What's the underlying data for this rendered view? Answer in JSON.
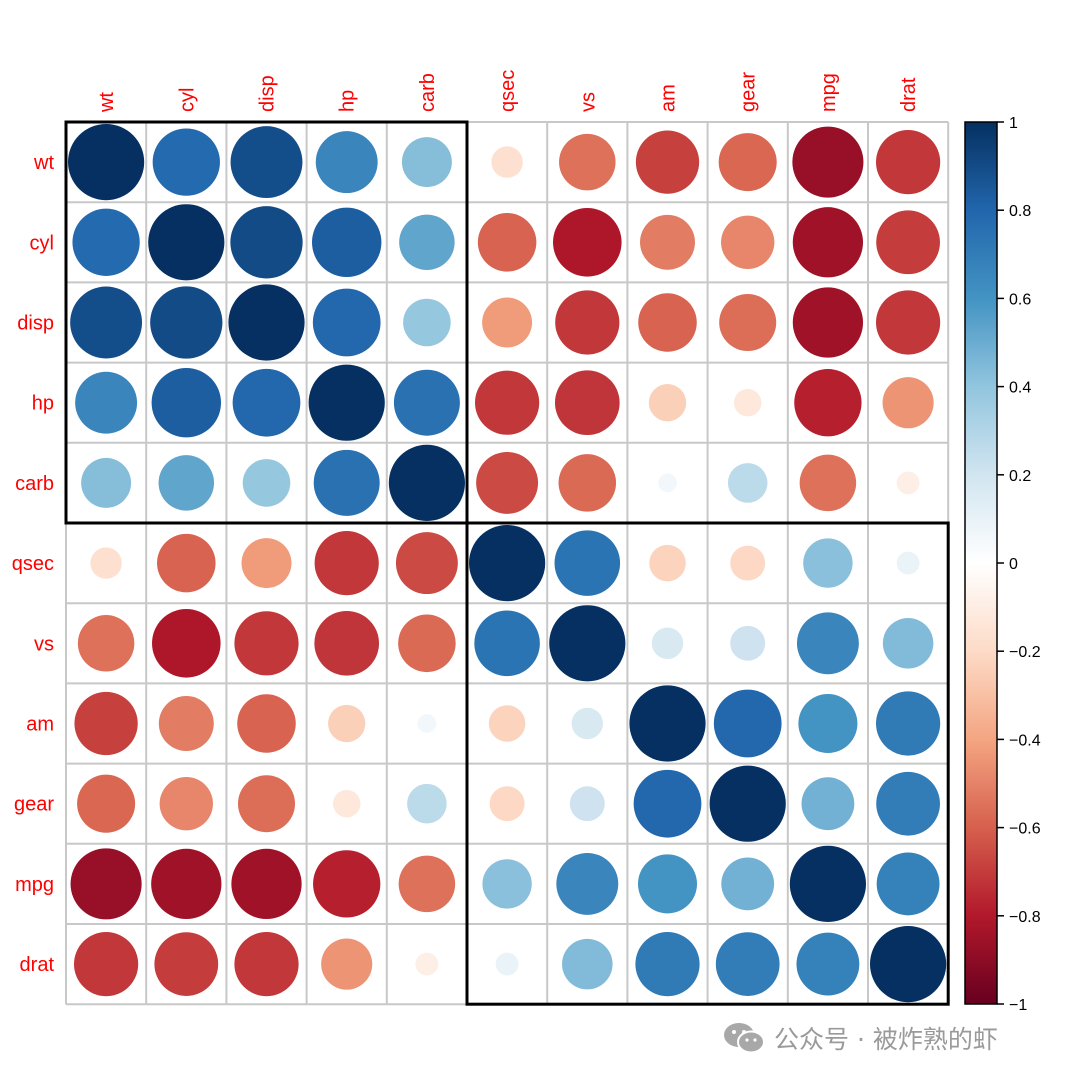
{
  "chart_data": {
    "type": "heatmap",
    "style": "correlation-circle-matrix",
    "variables": [
      "wt",
      "cyl",
      "disp",
      "hp",
      "carb",
      "qsec",
      "vs",
      "am",
      "gear",
      "mpg",
      "drat"
    ],
    "matrix": [
      [
        1.0,
        0.78,
        0.89,
        0.66,
        0.43,
        -0.17,
        -0.55,
        -0.69,
        -0.58,
        -0.87,
        -0.71
      ],
      [
        0.78,
        1.0,
        0.9,
        0.83,
        0.53,
        -0.59,
        -0.81,
        -0.52,
        -0.49,
        -0.85,
        -0.7
      ],
      [
        0.89,
        0.9,
        1.0,
        0.79,
        0.39,
        -0.43,
        -0.71,
        -0.59,
        -0.56,
        -0.85,
        -0.71
      ],
      [
        0.66,
        0.83,
        0.79,
        1.0,
        0.75,
        -0.71,
        -0.72,
        -0.24,
        -0.13,
        -0.78,
        -0.45
      ],
      [
        0.43,
        0.53,
        0.39,
        0.75,
        1.0,
        -0.66,
        -0.57,
        0.06,
        0.27,
        -0.55,
        -0.09
      ],
      [
        -0.17,
        -0.59,
        -0.43,
        -0.71,
        -0.66,
        1.0,
        0.74,
        -0.23,
        -0.21,
        0.42,
        0.09
      ],
      [
        -0.55,
        -0.81,
        -0.71,
        -0.72,
        -0.57,
        0.74,
        1.0,
        0.17,
        0.21,
        0.66,
        0.44
      ],
      [
        -0.69,
        -0.52,
        -0.59,
        -0.24,
        0.06,
        -0.23,
        0.17,
        1.0,
        0.79,
        0.6,
        0.71
      ],
      [
        -0.58,
        -0.49,
        -0.56,
        -0.13,
        0.27,
        -0.21,
        0.21,
        0.79,
        1.0,
        0.48,
        0.7
      ],
      [
        -0.87,
        -0.85,
        -0.85,
        -0.78,
        -0.55,
        0.42,
        0.66,
        0.6,
        0.48,
        1.0,
        0.68
      ],
      [
        -0.71,
        -0.7,
        -0.71,
        -0.45,
        -0.09,
        0.09,
        0.44,
        0.71,
        0.7,
        0.68,
        1.0
      ]
    ],
    "clusters": [
      {
        "from": 0,
        "to": 4
      },
      {
        "from": 5,
        "to": 10
      }
    ],
    "colorbar": {
      "ticks": [
        "1",
        "0.8",
        "0.6",
        "0.4",
        "0.2",
        "0",
        "−0.2",
        "−0.4",
        "−0.6",
        "−0.8",
        "−1"
      ],
      "range": [
        -1,
        1
      ],
      "palette": [
        "#67001F",
        "#B2182B",
        "#D6604D",
        "#F4A582",
        "#FDDBC7",
        "#FFFFFF",
        "#D1E5F0",
        "#92C5DE",
        "#4393C3",
        "#2166AC",
        "#053061"
      ]
    },
    "label_color": "#FF0000",
    "grid_color": "#C8C8C8"
  },
  "watermark": {
    "text": "公众号 · 被炸熟的虾",
    "icon": "wechat-icon"
  }
}
